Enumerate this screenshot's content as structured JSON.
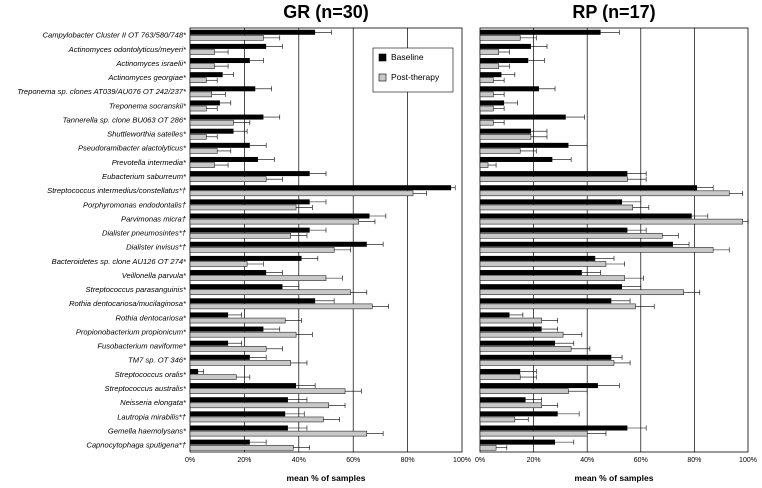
{
  "chart_data": {
    "type": "bar",
    "orientation": "horizontal",
    "categories": [
      "Campylobacter Cluster II OT 763/580/748*",
      "Actinomyces odontolyticus/meyeri*",
      "Actinomyces israelii*",
      "Actinomyces georgiae*",
      "Treponema sp. clones AT039/AU076 OT 242/237*",
      "Treponema socranskii*",
      "Tannerella sp. clone BU063 OT 286*",
      "Shuttleworthia satelles*",
      "Pseudoramibacter alactolyticus*",
      "Prevotella intermedia*",
      "Eubacterium saburreum*",
      "Streptococcus intermedius/constellatus*†",
      "Porphyromonas endodontalis†",
      "Parvimonas micra†",
      "Dialister pneumosintes*†",
      "Dialister invisus*†",
      "Bacteroidetes sp. clone AU126 OT 274*",
      "Veillonella parvula*",
      "Streptococcus parasanguinis*",
      "Rothia dentocariosa/mucilaginosa*",
      "Rothia dentocariosa*",
      "Propionobacterium propionicum*",
      "Fusobacterium naviforme*",
      "TM7 sp. OT 346*",
      "Streptococcus oralis*",
      "Streptococcus australis*",
      "Neisseria elongata*",
      "Lautropia mirabilis*†",
      "Gemella haemolysans*",
      "Capnocytophaga sputigena*†"
    ],
    "xlabel": "mean % of samples",
    "xlim": [
      0,
      100
    ],
    "xticks": [
      "0%",
      "20%",
      "40%",
      "60%",
      "80%",
      "100%"
    ],
    "legend": {
      "position": "top-right of GR panel",
      "entries": [
        "Baseline",
        "Post-therapy"
      ]
    },
    "colors": {
      "baseline": "#000000",
      "post": "#c8c8c8"
    },
    "panels": [
      {
        "title": "GR (n=30)",
        "series": [
          {
            "name": "Baseline",
            "values": [
              46,
              28,
              22,
              12,
              24,
              11,
              27,
              16,
              22,
              25,
              44,
              96,
              44,
              66,
              44,
              65,
              41,
              28,
              34,
              46,
              14,
              27,
              14,
              22,
              3,
              39,
              36,
              35,
              36,
              22
            ],
            "errors": [
              6,
              6,
              5,
              4,
              6,
              4,
              6,
              5,
              6,
              6,
              6,
              1.5,
              6,
              6,
              6,
              6,
              6,
              6,
              6,
              7,
              5,
              6,
              5,
              6,
              2,
              7,
              7,
              7,
              7,
              6
            ]
          },
          {
            "name": "Post-therapy",
            "values": [
              27,
              9,
              9,
              6,
              8,
              6,
              16,
              6,
              10,
              9,
              28,
              82,
              39,
              62,
              37,
              53,
              21,
              50,
              59,
              67,
              35,
              39,
              28,
              37,
              17,
              57,
              51,
              49,
              65,
              38
            ],
            "errors": [
              6,
              5,
              5,
              4,
              5,
              4,
              6,
              4,
              5,
              5,
              6,
              5,
              6,
              6,
              6,
              6,
              6,
              6,
              6,
              6,
              6,
              6,
              6,
              6,
              5,
              6,
              6,
              6,
              6,
              6
            ]
          }
        ]
      },
      {
        "title": "RP (n=17)",
        "series": [
          {
            "name": "Baseline",
            "values": [
              45,
              19,
              18,
              8,
              22,
              9,
              32,
              19,
              33,
              27,
              55,
              81,
              53,
              79,
              55,
              72,
              43,
              38,
              53,
              49,
              11,
              23,
              28,
              49,
              15,
              44,
              17,
              29,
              55,
              28
            ],
            "errors": [
              7,
              6,
              6,
              5,
              6,
              5,
              7,
              6,
              7,
              7,
              7,
              6,
              7,
              6,
              7,
              6,
              7,
              7,
              7,
              7,
              5,
              6,
              7,
              4,
              6,
              8,
              6,
              8,
              7,
              7
            ]
          },
          {
            "name": "Post-therapy",
            "values": [
              15,
              7,
              7,
              5,
              5,
              5,
              5,
              19,
              15,
              3,
              55,
              93,
              57,
              98,
              68,
              87,
              47,
              54,
              76,
              58,
              23,
              31,
              34,
              50,
              15,
              33,
              23,
              13,
              40,
              6
            ],
            "errors": [
              6,
              4,
              4,
              4,
              4,
              4,
              4,
              6,
              6,
              3,
              7,
              5,
              6,
              2,
              6,
              6,
              7,
              7,
              6,
              7,
              6,
              7,
              7,
              6,
              6,
              7,
              6,
              5,
              7,
              4
            ]
          }
        ]
      }
    ]
  }
}
